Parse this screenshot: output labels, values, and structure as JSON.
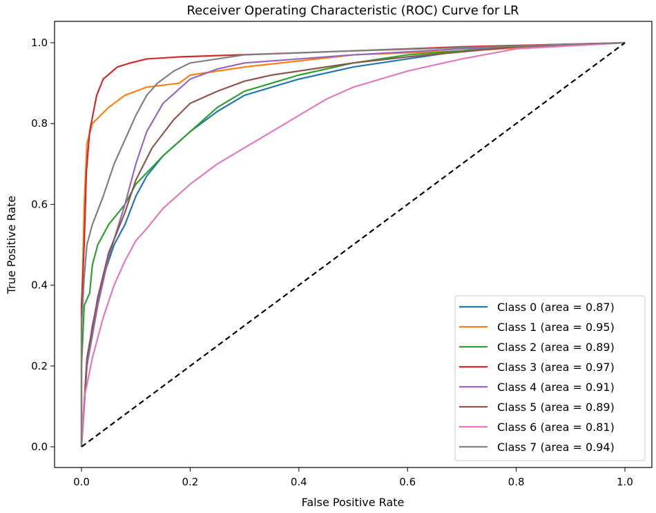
{
  "chart_data": {
    "type": "line",
    "title": "Receiver Operating Characteristic (ROC) Curve for LR",
    "xlabel": "False Positive Rate",
    "ylabel": "True Positive Rate",
    "xlim": [
      -0.05,
      1.05
    ],
    "ylim": [
      -0.05,
      1.05
    ],
    "xticks": [
      "0.0",
      "0.2",
      "0.4",
      "0.6",
      "0.8",
      "1.0"
    ],
    "yticks": [
      "0.0",
      "0.2",
      "0.4",
      "0.6",
      "0.8",
      "1.0"
    ],
    "grid": false,
    "legend_position": "lower-right",
    "diagonal": {
      "style": "dashed",
      "color": "#000000",
      "points": [
        [
          0,
          0
        ],
        [
          1,
          1
        ]
      ]
    },
    "series": [
      {
        "name": "Class 0 (area = 0.87)",
        "color": "#1f77b4",
        "points": [
          [
            0,
            0
          ],
          [
            0.01,
            0.2
          ],
          [
            0.02,
            0.3
          ],
          [
            0.04,
            0.42
          ],
          [
            0.06,
            0.5
          ],
          [
            0.08,
            0.55
          ],
          [
            0.1,
            0.62
          ],
          [
            0.12,
            0.67
          ],
          [
            0.15,
            0.72
          ],
          [
            0.2,
            0.78
          ],
          [
            0.25,
            0.83
          ],
          [
            0.3,
            0.87
          ],
          [
            0.35,
            0.89
          ],
          [
            0.4,
            0.91
          ],
          [
            0.5,
            0.94
          ],
          [
            0.6,
            0.96
          ],
          [
            0.7,
            0.98
          ],
          [
            0.8,
            0.99
          ],
          [
            1,
            1
          ]
        ]
      },
      {
        "name": "Class 1 (area = 0.95)",
        "color": "#ff7f0e",
        "points": [
          [
            0,
            0
          ],
          [
            0,
            0.3
          ],
          [
            0.005,
            0.6
          ],
          [
            0.01,
            0.75
          ],
          [
            0.02,
            0.8
          ],
          [
            0.05,
            0.84
          ],
          [
            0.08,
            0.87
          ],
          [
            0.12,
            0.89
          ],
          [
            0.18,
            0.9
          ],
          [
            0.2,
            0.92
          ],
          [
            0.3,
            0.94
          ],
          [
            0.5,
            0.97
          ],
          [
            0.7,
            0.98
          ],
          [
            1,
            1
          ]
        ]
      },
      {
        "name": "Class 2 (area = 0.89)",
        "color": "#2ca02c",
        "points": [
          [
            0,
            0
          ],
          [
            0,
            0.2
          ],
          [
            0.005,
            0.35
          ],
          [
            0.015,
            0.38
          ],
          [
            0.02,
            0.45
          ],
          [
            0.03,
            0.5
          ],
          [
            0.05,
            0.55
          ],
          [
            0.08,
            0.6
          ],
          [
            0.1,
            0.65
          ],
          [
            0.15,
            0.72
          ],
          [
            0.2,
            0.78
          ],
          [
            0.25,
            0.84
          ],
          [
            0.3,
            0.88
          ],
          [
            0.4,
            0.92
          ],
          [
            0.5,
            0.95
          ],
          [
            0.6,
            0.97
          ],
          [
            0.8,
            0.99
          ],
          [
            1,
            1
          ]
        ]
      },
      {
        "name": "Class 3 (area = 0.97)",
        "color": "#d62728",
        "points": [
          [
            0,
            0
          ],
          [
            0,
            0.35
          ],
          [
            0.005,
            0.5
          ],
          [
            0.009,
            0.68
          ],
          [
            0.015,
            0.78
          ],
          [
            0.028,
            0.87
          ],
          [
            0.04,
            0.91
          ],
          [
            0.066,
            0.94
          ],
          [
            0.09,
            0.95
          ],
          [
            0.12,
            0.96
          ],
          [
            0.18,
            0.965
          ],
          [
            0.4,
            0.975
          ],
          [
            0.7,
            0.99
          ],
          [
            1,
            1
          ]
        ]
      },
      {
        "name": "Class 4 (area = 0.91)",
        "color": "#9467bd",
        "points": [
          [
            0,
            0
          ],
          [
            0.01,
            0.2
          ],
          [
            0.03,
            0.35
          ],
          [
            0.05,
            0.47
          ],
          [
            0.08,
            0.6
          ],
          [
            0.1,
            0.7
          ],
          [
            0.12,
            0.78
          ],
          [
            0.15,
            0.85
          ],
          [
            0.2,
            0.91
          ],
          [
            0.25,
            0.935
          ],
          [
            0.3,
            0.95
          ],
          [
            0.5,
            0.97
          ],
          [
            0.7,
            0.985
          ],
          [
            1,
            1
          ]
        ]
      },
      {
        "name": "Class 5 (area = 0.89)",
        "color": "#8c564b",
        "points": [
          [
            0,
            0
          ],
          [
            0.01,
            0.22
          ],
          [
            0.03,
            0.37
          ],
          [
            0.05,
            0.48
          ],
          [
            0.08,
            0.58
          ],
          [
            0.1,
            0.66
          ],
          [
            0.13,
            0.74
          ],
          [
            0.17,
            0.81
          ],
          [
            0.2,
            0.85
          ],
          [
            0.25,
            0.88
          ],
          [
            0.3,
            0.905
          ],
          [
            0.35,
            0.92
          ],
          [
            0.5,
            0.95
          ],
          [
            0.6,
            0.965
          ],
          [
            0.8,
            0.99
          ],
          [
            1,
            1
          ]
        ]
      },
      {
        "name": "Class 6 (area = 0.81)",
        "color": "#e377c2",
        "points": [
          [
            0,
            0
          ],
          [
            0.005,
            0.12
          ],
          [
            0.02,
            0.22
          ],
          [
            0.04,
            0.32
          ],
          [
            0.06,
            0.4
          ],
          [
            0.08,
            0.46
          ],
          [
            0.1,
            0.51
          ],
          [
            0.12,
            0.54
          ],
          [
            0.15,
            0.59
          ],
          [
            0.2,
            0.65
          ],
          [
            0.25,
            0.7
          ],
          [
            0.3,
            0.74
          ],
          [
            0.35,
            0.78
          ],
          [
            0.4,
            0.82
          ],
          [
            0.45,
            0.86
          ],
          [
            0.5,
            0.89
          ],
          [
            0.6,
            0.93
          ],
          [
            0.7,
            0.96
          ],
          [
            0.8,
            0.985
          ],
          [
            1,
            1
          ]
        ]
      },
      {
        "name": "Class 7 (area = 0.94)",
        "color": "#7f7f7f",
        "points": [
          [
            0,
            0
          ],
          [
            0,
            0.3
          ],
          [
            0.005,
            0.42
          ],
          [
            0.01,
            0.5
          ],
          [
            0.02,
            0.55
          ],
          [
            0.04,
            0.62
          ],
          [
            0.06,
            0.7
          ],
          [
            0.08,
            0.76
          ],
          [
            0.1,
            0.82
          ],
          [
            0.12,
            0.87
          ],
          [
            0.14,
            0.9
          ],
          [
            0.17,
            0.93
          ],
          [
            0.2,
            0.95
          ],
          [
            0.3,
            0.97
          ],
          [
            0.5,
            0.98
          ],
          [
            1,
            1
          ]
        ]
      }
    ]
  }
}
